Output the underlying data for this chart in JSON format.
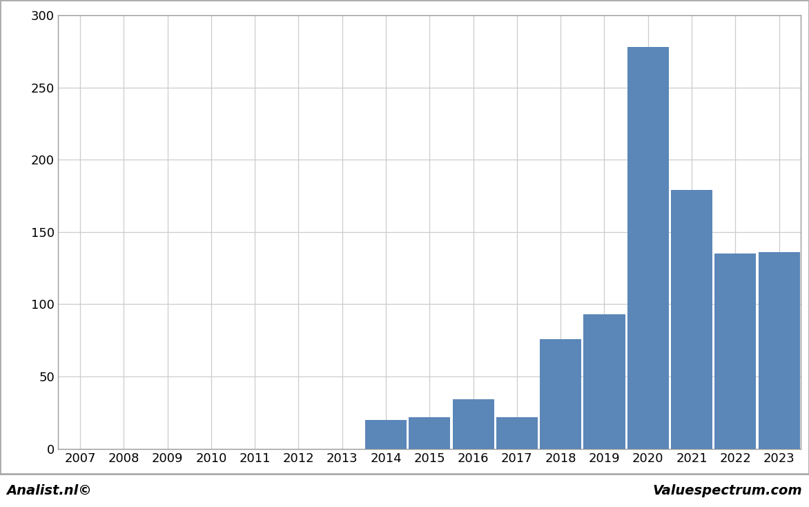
{
  "categories": [
    2007,
    2008,
    2009,
    2010,
    2011,
    2012,
    2013,
    2014,
    2015,
    2016,
    2017,
    2018,
    2019,
    2020,
    2021,
    2022,
    2023
  ],
  "values": [
    0,
    0,
    0,
    0,
    0,
    0,
    0,
    20,
    22,
    34,
    22,
    76,
    93,
    278,
    179,
    135,
    136
  ],
  "bar_color": "#5b86b8",
  "ylim": [
    0,
    300
  ],
  "yticks": [
    0,
    50,
    100,
    150,
    200,
    250,
    300
  ],
  "background_color": "#ffffff",
  "plot_background_color": "#ffffff",
  "grid_color": "#cccccc",
  "footer_background": "#cccccc",
  "footer_left": "Analist.nl©",
  "footer_right": "Valuespectrum.com",
  "footer_fontsize": 14,
  "tick_fontsize": 13,
  "border_color": "#999999"
}
